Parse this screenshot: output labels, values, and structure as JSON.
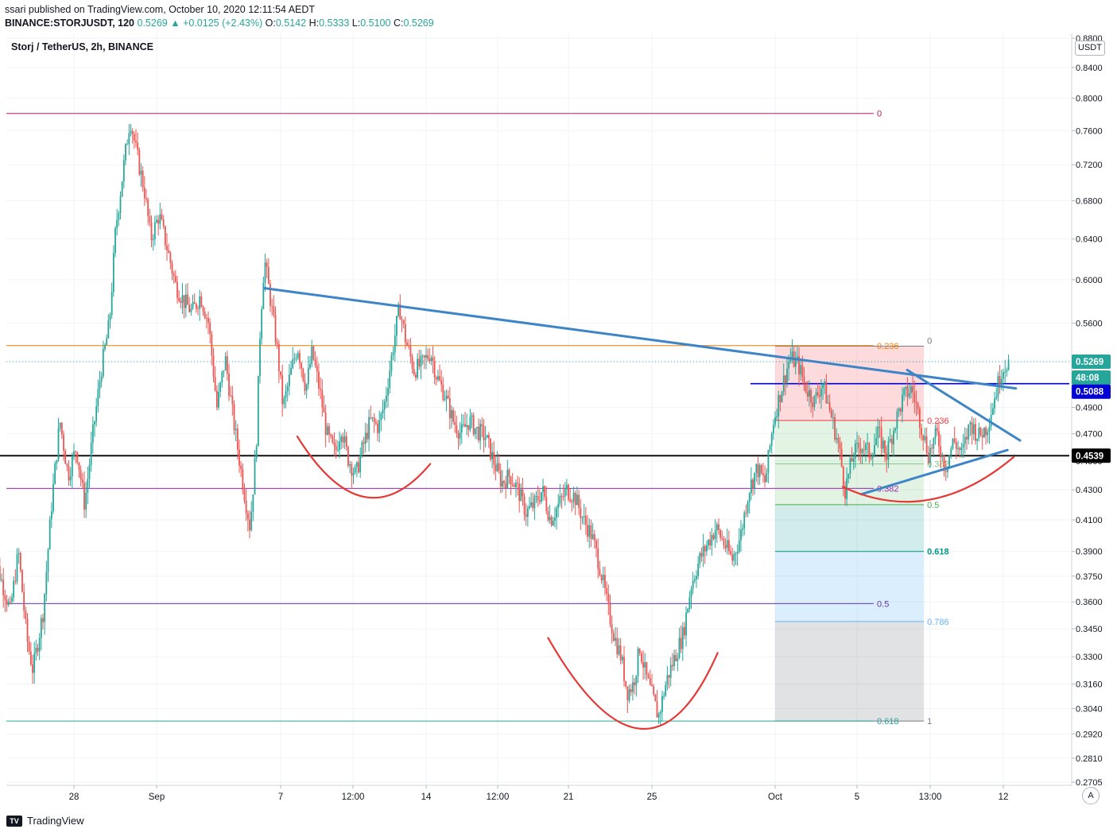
{
  "header": {
    "published": "ssari published on TradingView.com, October 10, 2020 12:11:54 AEDT",
    "symbol": "BINANCE:STORJUSDT, 120",
    "last": "0.5269",
    "change": "+0.0125 (+2.43%)",
    "o_label": "O:",
    "o_value": "0.5142",
    "h_label": "H:",
    "h_value": "0.5333",
    "l_label": "L:",
    "l_value": "0.5100",
    "c_label": "C:",
    "c_value": "0.5269"
  },
  "chart_title": "Storj / TetherUS, 2h, BINANCE",
  "currency": "USDT",
  "footer": {
    "brand": "TradingView",
    "auto_button": "A"
  },
  "colors": {
    "up": "#26a69a",
    "down": "#ef5350",
    "trendline": "#3d85c6",
    "arc": "#e53935",
    "support": "#000000",
    "resistance": "#0000d4"
  },
  "chart_data": {
    "type": "candlestick",
    "title": "Storj / TetherUS, 2h, BINANCE",
    "y_scale": "log",
    "ylim": [
      0.2705,
      0.88
    ],
    "y_ticks": [
      "0.8800",
      "0.8400",
      "0.8000",
      "0.7600",
      "0.7200",
      "0.6800",
      "0.6400",
      "0.6000",
      "0.5600",
      "0.5269",
      "0.4900",
      "0.4700",
      "0.4500",
      "0.4300",
      "0.4100",
      "0.3900",
      "0.3750",
      "0.3600",
      "0.3450",
      "0.3300",
      "0.3160",
      "0.3040",
      "0.2920",
      "0.2810",
      "0.2705"
    ],
    "x_ticks": [
      "28",
      "Sep",
      "7",
      "12:00",
      "14",
      "12:00",
      "21",
      "25",
      "Oct",
      "5",
      "13:00",
      "12"
    ],
    "price_labels": {
      "last": "0.5269",
      "countdown": "48:08",
      "blue_line": "0.5088",
      "black_line": "0.4539"
    },
    "horizontal_lines": [
      {
        "name": "fib-0-left",
        "price": 0.781,
        "label": "0"
      },
      {
        "name": "fib-0.236-left",
        "price": 0.5405,
        "label": "0.236"
      },
      {
        "name": "fib-0.382-left",
        "price": 0.431,
        "label": "0.382"
      },
      {
        "name": "fib-0.5-left",
        "price": 0.359,
        "label": "0.5"
      },
      {
        "name": "fib-0.618-left",
        "price": 0.298,
        "label": "0.618"
      },
      {
        "name": "resistance",
        "price": 0.5088
      },
      {
        "name": "support",
        "price": 0.4539
      }
    ],
    "fib_right": {
      "levels": [
        {
          "label": "0",
          "price": 0.54
        },
        {
          "label": "0.236",
          "price": 0.48
        },
        {
          "label": "0.382",
          "price": 0.448
        },
        {
          "label": "0.5",
          "price": 0.42
        },
        {
          "label": "0.618",
          "price": 0.39
        },
        {
          "label": "0.786",
          "price": 0.349
        },
        {
          "label": "1",
          "price": 0.298
        }
      ]
    },
    "anchors": [
      {
        "label": "28",
        "day": 28
      },
      {
        "label": "Sep",
        "day": 32
      },
      {
        "label": "7",
        "day": 38
      },
      {
        "label": "14",
        "day": 45
      },
      {
        "label": "21",
        "day": 52
      },
      {
        "label": "25",
        "day": 56
      },
      {
        "label": "Oct",
        "day": 62
      },
      {
        "label": "5",
        "day": 66
      },
      {
        "label": "12",
        "day": 73
      }
    ],
    "path": [
      [
        24.0,
        0.43
      ],
      [
        24.4,
        0.38
      ],
      [
        25.0,
        0.355
      ],
      [
        25.4,
        0.39
      ],
      [
        25.8,
        0.34
      ],
      [
        26.1,
        0.323
      ],
      [
        26.6,
        0.355
      ],
      [
        27.0,
        0.42
      ],
      [
        27.4,
        0.48
      ],
      [
        27.8,
        0.44
      ],
      [
        28.2,
        0.46
      ],
      [
        28.6,
        0.42
      ],
      [
        29.0,
        0.47
      ],
      [
        29.4,
        0.52
      ],
      [
        29.8,
        0.56
      ],
      [
        30.1,
        0.65
      ],
      [
        30.5,
        0.72
      ],
      [
        30.8,
        0.775
      ],
      [
        31.1,
        0.735
      ],
      [
        31.5,
        0.69
      ],
      [
        31.8,
        0.64
      ],
      [
        32.2,
        0.665
      ],
      [
        32.6,
        0.63
      ],
      [
        33.0,
        0.595
      ],
      [
        33.4,
        0.58
      ],
      [
        33.8,
        0.57
      ],
      [
        34.2,
        0.585
      ],
      [
        34.6,
        0.56
      ],
      [
        35.0,
        0.49
      ],
      [
        35.4,
        0.53
      ],
      [
        35.8,
        0.48
      ],
      [
        36.2,
        0.44
      ],
      [
        36.6,
        0.405
      ],
      [
        36.9,
        0.46
      ],
      [
        37.1,
        0.56
      ],
      [
        37.3,
        0.62
      ],
      [
        37.6,
        0.58
      ],
      [
        37.9,
        0.54
      ],
      [
        38.2,
        0.49
      ],
      [
        38.6,
        0.52
      ],
      [
        38.9,
        0.54
      ],
      [
        39.3,
        0.505
      ],
      [
        39.6,
        0.535
      ],
      [
        40.0,
        0.5
      ],
      [
        40.3,
        0.47
      ],
      [
        40.7,
        0.455
      ],
      [
        41.0,
        0.475
      ],
      [
        41.3,
        0.453
      ],
      [
        41.7,
        0.44
      ],
      [
        42.0,
        0.458
      ],
      [
        42.4,
        0.48
      ],
      [
        42.8,
        0.475
      ],
      [
        43.1,
        0.495
      ],
      [
        43.5,
        0.54
      ],
      [
        43.8,
        0.575
      ],
      [
        44.1,
        0.545
      ],
      [
        44.5,
        0.52
      ],
      [
        44.9,
        0.525
      ],
      [
        45.3,
        0.535
      ],
      [
        45.6,
        0.515
      ],
      [
        46.0,
        0.5
      ],
      [
        46.4,
        0.48
      ],
      [
        46.8,
        0.47
      ],
      [
        47.2,
        0.48
      ],
      [
        47.6,
        0.472
      ],
      [
        48.0,
        0.468
      ],
      [
        48.4,
        0.45
      ],
      [
        48.8,
        0.435
      ],
      [
        49.2,
        0.44
      ],
      [
        49.6,
        0.43
      ],
      [
        50.0,
        0.415
      ],
      [
        50.4,
        0.42
      ],
      [
        50.8,
        0.43
      ],
      [
        51.2,
        0.41
      ],
      [
        51.6,
        0.42
      ],
      [
        52.0,
        0.43
      ],
      [
        52.4,
        0.425
      ],
      [
        52.8,
        0.41
      ],
      [
        53.2,
        0.4
      ],
      [
        53.6,
        0.38
      ],
      [
        54.0,
        0.355
      ],
      [
        54.3,
        0.34
      ],
      [
        54.6,
        0.33
      ],
      [
        54.9,
        0.312
      ],
      [
        55.2,
        0.316
      ],
      [
        55.5,
        0.335
      ],
      [
        55.8,
        0.32
      ],
      [
        56.1,
        0.31
      ],
      [
        56.4,
        0.3
      ],
      [
        56.8,
        0.318
      ],
      [
        57.2,
        0.33
      ],
      [
        57.6,
        0.342
      ],
      [
        58.0,
        0.37
      ],
      [
        58.4,
        0.385
      ],
      [
        58.8,
        0.395
      ],
      [
        59.2,
        0.405
      ],
      [
        59.6,
        0.395
      ],
      [
        60.0,
        0.385
      ],
      [
        60.4,
        0.4
      ],
      [
        60.8,
        0.43
      ],
      [
        61.2,
        0.445
      ],
      [
        61.6,
        0.435
      ],
      [
        62.0,
        0.48
      ],
      [
        62.4,
        0.505
      ],
      [
        62.8,
        0.53
      ],
      [
        63.2,
        0.525
      ],
      [
        63.6,
        0.505
      ],
      [
        64.0,
        0.495
      ],
      [
        64.4,
        0.51
      ],
      [
        64.8,
        0.485
      ],
      [
        65.2,
        0.46
      ],
      [
        65.5,
        0.43
      ],
      [
        65.9,
        0.455
      ],
      [
        66.3,
        0.462
      ],
      [
        66.7,
        0.455
      ],
      [
        67.1,
        0.47
      ],
      [
        67.5,
        0.455
      ],
      [
        67.9,
        0.478
      ],
      [
        68.3,
        0.498
      ],
      [
        68.7,
        0.505
      ],
      [
        69.1,
        0.48
      ],
      [
        69.5,
        0.455
      ],
      [
        69.9,
        0.47
      ],
      [
        70.3,
        0.445
      ],
      [
        70.7,
        0.465
      ],
      [
        71.1,
        0.455
      ],
      [
        71.5,
        0.478
      ],
      [
        71.9,
        0.468
      ],
      [
        72.3,
        0.475
      ],
      [
        72.7,
        0.5
      ],
      [
        73.0,
        0.52
      ],
      [
        73.3,
        0.527
      ]
    ],
    "trendlines": [
      {
        "name": "descending-resistance",
        "from": [
          37.2,
          0.592
        ],
        "to": [
          73.6,
          0.505
        ]
      },
      {
        "name": "wedge-upper",
        "from": [
          68.4,
          0.52
        ],
        "to": [
          73.8,
          0.465
        ]
      },
      {
        "name": "wedge-lower",
        "from": [
          66.2,
          0.427
        ],
        "to": [
          73.2,
          0.458
        ]
      }
    ],
    "arcs": [
      {
        "name": "rounded-bottom-1",
        "start": [
          38.8,
          0.468
        ],
        "control": [
          42.0,
          0.395
        ],
        "end": [
          45.2,
          0.448
        ]
      },
      {
        "name": "rounded-bottom-2",
        "start": [
          51.0,
          0.34
        ],
        "control": [
          55.8,
          0.258
        ],
        "end": [
          59.2,
          0.332
        ]
      },
      {
        "name": "rounded-bottom-3",
        "start": [
          65.3,
          0.432
        ],
        "control": [
          69.5,
          0.405
        ],
        "end": [
          73.5,
          0.453
        ]
      }
    ]
  }
}
